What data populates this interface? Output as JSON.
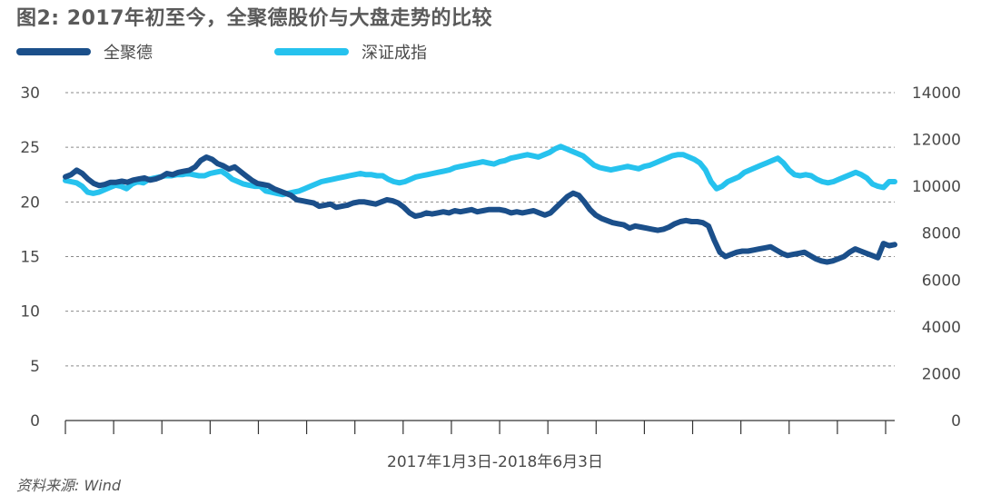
{
  "title": "图2: 2017年初至今，全聚德股价与大盘走势的比较",
  "source": "资料来源: Wind",
  "colors": {
    "series1": "#1b4f8a",
    "series2": "#26c2ee",
    "grid": "#8a8a8a",
    "axis": "#333333"
  },
  "chart_data": {
    "type": "line",
    "xlabel": "2017年1月3日-2018年6月3日",
    "x_tick_count": 18,
    "y_left": {
      "ylim": [
        0,
        30
      ],
      "ticks": [
        0,
        5,
        10,
        15,
        20,
        25,
        30
      ]
    },
    "y_right": {
      "ylim": [
        0,
        14000
      ],
      "ticks": [
        0,
        2000,
        4000,
        6000,
        8000,
        10000,
        12000,
        14000
      ]
    },
    "grid": true,
    "legend_position": "top-left",
    "series": [
      {
        "name": "全聚德",
        "axis": "left",
        "values": [
          22.3,
          22.5,
          22.9,
          22.6,
          22.1,
          21.7,
          21.5,
          21.6,
          21.8,
          21.8,
          21.9,
          21.8,
          22.0,
          22.1,
          22.2,
          22.0,
          22.1,
          22.3,
          22.6,
          22.5,
          22.7,
          22.8,
          22.9,
          23.2,
          23.8,
          24.1,
          23.9,
          23.5,
          23.3,
          23.0,
          23.2,
          22.8,
          22.4,
          22.0,
          21.7,
          21.6,
          21.5,
          21.2,
          21.0,
          20.8,
          20.6,
          20.2,
          20.1,
          20.0,
          19.9,
          19.6,
          19.7,
          19.8,
          19.5,
          19.6,
          19.7,
          19.9,
          20.0,
          20.0,
          19.9,
          19.8,
          20.0,
          20.2,
          20.1,
          19.9,
          19.5,
          19.0,
          18.7,
          18.8,
          19.0,
          18.9,
          19.0,
          19.1,
          19.0,
          19.2,
          19.1,
          19.2,
          19.3,
          19.1,
          19.2,
          19.3,
          19.3,
          19.3,
          19.2,
          19.0,
          19.1,
          19.0,
          19.1,
          19.2,
          19.0,
          18.8,
          19.0,
          19.5,
          20.0,
          20.5,
          20.8,
          20.6,
          20.0,
          19.3,
          18.8,
          18.5,
          18.3,
          18.1,
          18.0,
          17.9,
          17.6,
          17.8,
          17.7,
          17.6,
          17.5,
          17.4,
          17.5,
          17.7,
          18.0,
          18.2,
          18.3,
          18.2,
          18.2,
          18.1,
          17.8,
          16.5,
          15.4,
          15.0,
          15.2,
          15.4,
          15.5,
          15.5,
          15.6,
          15.7,
          15.8,
          15.9,
          15.6,
          15.3,
          15.1,
          15.2,
          15.3,
          15.4,
          15.1,
          14.8,
          14.6,
          14.5,
          14.6,
          14.8,
          15.0,
          15.4,
          15.7,
          15.5,
          15.3,
          15.1,
          14.9,
          16.2,
          16.0,
          16.1
        ]
      },
      {
        "name": "深证成指",
        "axis": "right",
        "values": [
          10250,
          10200,
          10150,
          10000,
          9750,
          9700,
          9750,
          9850,
          9950,
          10050,
          10000,
          9900,
          10100,
          10200,
          10150,
          10300,
          10350,
          10400,
          10450,
          10450,
          10500,
          10500,
          10550,
          10500,
          10450,
          10450,
          10550,
          10600,
          10650,
          10500,
          10300,
          10200,
          10100,
          10050,
          10000,
          10000,
          9800,
          9750,
          9700,
          9650,
          9700,
          9750,
          9800,
          9900,
          10000,
          10100,
          10200,
          10250,
          10300,
          10350,
          10400,
          10450,
          10500,
          10550,
          10500,
          10500,
          10450,
          10450,
          10300,
          10200,
          10150,
          10200,
          10300,
          10400,
          10450,
          10500,
          10550,
          10600,
          10650,
          10700,
          10800,
          10850,
          10900,
          10950,
          11000,
          11050,
          11000,
          10950,
          11050,
          11100,
          11200,
          11250,
          11300,
          11350,
          11300,
          11250,
          11350,
          11450,
          11600,
          11700,
          11600,
          11500,
          11400,
          11300,
          11100,
          10900,
          10800,
          10750,
          10700,
          10750,
          10800,
          10850,
          10800,
          10750,
          10850,
          10900,
          11000,
          11100,
          11200,
          11300,
          11350,
          11350,
          11250,
          11150,
          11000,
          10700,
          10200,
          9900,
          10000,
          10200,
          10300,
          10400,
          10600,
          10700,
          10800,
          10900,
          11000,
          11100,
          11200,
          11000,
          10700,
          10500,
          10450,
          10500,
          10450,
          10300,
          10200,
          10150,
          10200,
          10300,
          10400,
          10500,
          10600,
          10500,
          10350,
          10100,
          10000,
          9950,
          10200,
          10200
        ]
      }
    ]
  }
}
